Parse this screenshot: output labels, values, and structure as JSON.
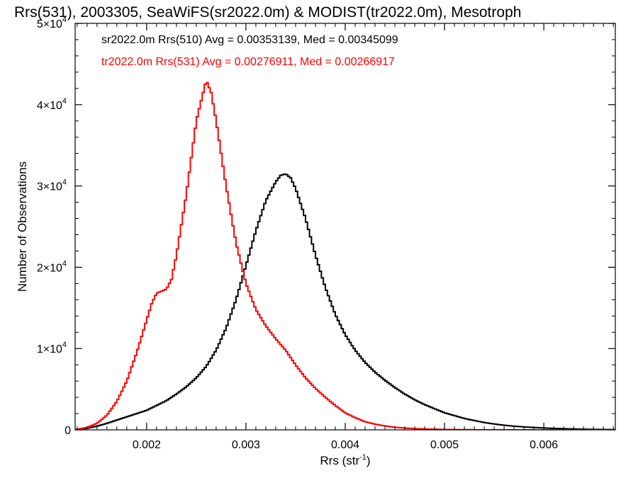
{
  "chart_data": {
    "type": "line",
    "style": "histogram-step",
    "title": "Rrs(531), 2003305, SeaWiFS(sr2022.0m) & MODIST(tr2022.0m), Mesotroph",
    "xlabel": "Rrs (str",
    "xlabel_sup": "-1",
    "xlabel_close": ")",
    "ylabel": "Number of Observations",
    "xlim": [
      0.00128,
      0.00672
    ],
    "ylim": [
      0,
      50000
    ],
    "x_ticks": [
      {
        "value": 0.002,
        "label": "0.002"
      },
      {
        "value": 0.003,
        "label": "0.003"
      },
      {
        "value": 0.004,
        "label": "0.004"
      },
      {
        "value": 0.005,
        "label": "0.005"
      },
      {
        "value": 0.006,
        "label": "0.006"
      }
    ],
    "y_ticks": [
      {
        "value": 0,
        "mant": "0",
        "exp": ""
      },
      {
        "value": 10000,
        "mant": "1×10",
        "exp": "4"
      },
      {
        "value": 20000,
        "mant": "2×10",
        "exp": "4"
      },
      {
        "value": 30000,
        "mant": "3×10",
        "exp": "4"
      },
      {
        "value": 40000,
        "mant": "4×10",
        "exp": "4"
      },
      {
        "value": 50000,
        "mant": "5×10",
        "exp": "4"
      }
    ],
    "legend_position": "top-left",
    "series": [
      {
        "legend_text": "sr2022.0m Rrs(510) Avg = 0.00353139, Med = 0.00345099",
        "color": "#000000",
        "points": [
          [
            0.00128,
            0
          ],
          [
            0.0014,
            200
          ],
          [
            0.0015,
            450
          ],
          [
            0.0016,
            800
          ],
          [
            0.0017,
            1200
          ],
          [
            0.0018,
            1600
          ],
          [
            0.0019,
            2000
          ],
          [
            0.002,
            2400
          ],
          [
            0.0021,
            3000
          ],
          [
            0.0022,
            3600
          ],
          [
            0.0023,
            4400
          ],
          [
            0.0024,
            5300
          ],
          [
            0.0025,
            6400
          ],
          [
            0.0026,
            7800
          ],
          [
            0.0027,
            9800
          ],
          [
            0.0028,
            12500
          ],
          [
            0.0029,
            16000
          ],
          [
            0.003,
            20200
          ],
          [
            0.0031,
            24500
          ],
          [
            0.0032,
            28200
          ],
          [
            0.0033,
            30500
          ],
          [
            0.00335,
            31300
          ],
          [
            0.0034,
            31500
          ],
          [
            0.00345,
            31000
          ],
          [
            0.0035,
            29700
          ],
          [
            0.0036,
            26000
          ],
          [
            0.0037,
            21500
          ],
          [
            0.0038,
            17500
          ],
          [
            0.0039,
            14200
          ],
          [
            0.004,
            11700
          ],
          [
            0.0041,
            9800
          ],
          [
            0.0042,
            8300
          ],
          [
            0.0043,
            7100
          ],
          [
            0.0044,
            6100
          ],
          [
            0.0045,
            5200
          ],
          [
            0.0046,
            4400
          ],
          [
            0.0047,
            3700
          ],
          [
            0.0048,
            3100
          ],
          [
            0.0049,
            2600
          ],
          [
            0.005,
            2100
          ],
          [
            0.0051,
            1750
          ],
          [
            0.0052,
            1400
          ],
          [
            0.0053,
            1150
          ],
          [
            0.0054,
            900
          ],
          [
            0.0055,
            720
          ],
          [
            0.0056,
            570
          ],
          [
            0.0057,
            450
          ],
          [
            0.0058,
            360
          ],
          [
            0.0059,
            290
          ],
          [
            0.006,
            230
          ],
          [
            0.0061,
            180
          ],
          [
            0.0062,
            140
          ],
          [
            0.0063,
            110
          ],
          [
            0.0064,
            80
          ],
          [
            0.0065,
            60
          ],
          [
            0.0066,
            45
          ],
          [
            0.00672,
            30
          ]
        ]
      },
      {
        "legend_text": "tr2022.0m Rrs(531) Avg = 0.00276911, Med = 0.00266917",
        "color": "#ff0000",
        "points": [
          [
            0.00128,
            0
          ],
          [
            0.0014,
            300
          ],
          [
            0.0015,
            800
          ],
          [
            0.0016,
            1800
          ],
          [
            0.0017,
            3500
          ],
          [
            0.0018,
            6000
          ],
          [
            0.0019,
            9500
          ],
          [
            0.002,
            13500
          ],
          [
            0.00205,
            15500
          ],
          [
            0.0021,
            16800
          ],
          [
            0.0022,
            17300
          ],
          [
            0.00225,
            18500
          ],
          [
            0.0023,
            21500
          ],
          [
            0.0024,
            29000
          ],
          [
            0.0025,
            38000
          ],
          [
            0.0026,
            43000
          ],
          [
            0.00265,
            41500
          ],
          [
            0.0027,
            38000
          ],
          [
            0.0028,
            30000
          ],
          [
            0.0029,
            23000
          ],
          [
            0.003,
            18000
          ],
          [
            0.0031,
            14800
          ],
          [
            0.0032,
            12800
          ],
          [
            0.0033,
            11200
          ],
          [
            0.0034,
            9800
          ],
          [
            0.0035,
            8000
          ],
          [
            0.0036,
            6400
          ],
          [
            0.0037,
            5100
          ],
          [
            0.0038,
            4000
          ],
          [
            0.0039,
            3000
          ],
          [
            0.004,
            2100
          ],
          [
            0.0041,
            1500
          ],
          [
            0.0042,
            1000
          ],
          [
            0.0043,
            700
          ],
          [
            0.0044,
            480
          ],
          [
            0.0045,
            320
          ],
          [
            0.0046,
            220
          ],
          [
            0.0047,
            150
          ],
          [
            0.0048,
            100
          ],
          [
            0.005,
            50
          ],
          [
            0.0052,
            20
          ],
          [
            0.0055,
            8
          ],
          [
            0.006,
            0
          ],
          [
            0.00672,
            0
          ]
        ]
      }
    ]
  }
}
